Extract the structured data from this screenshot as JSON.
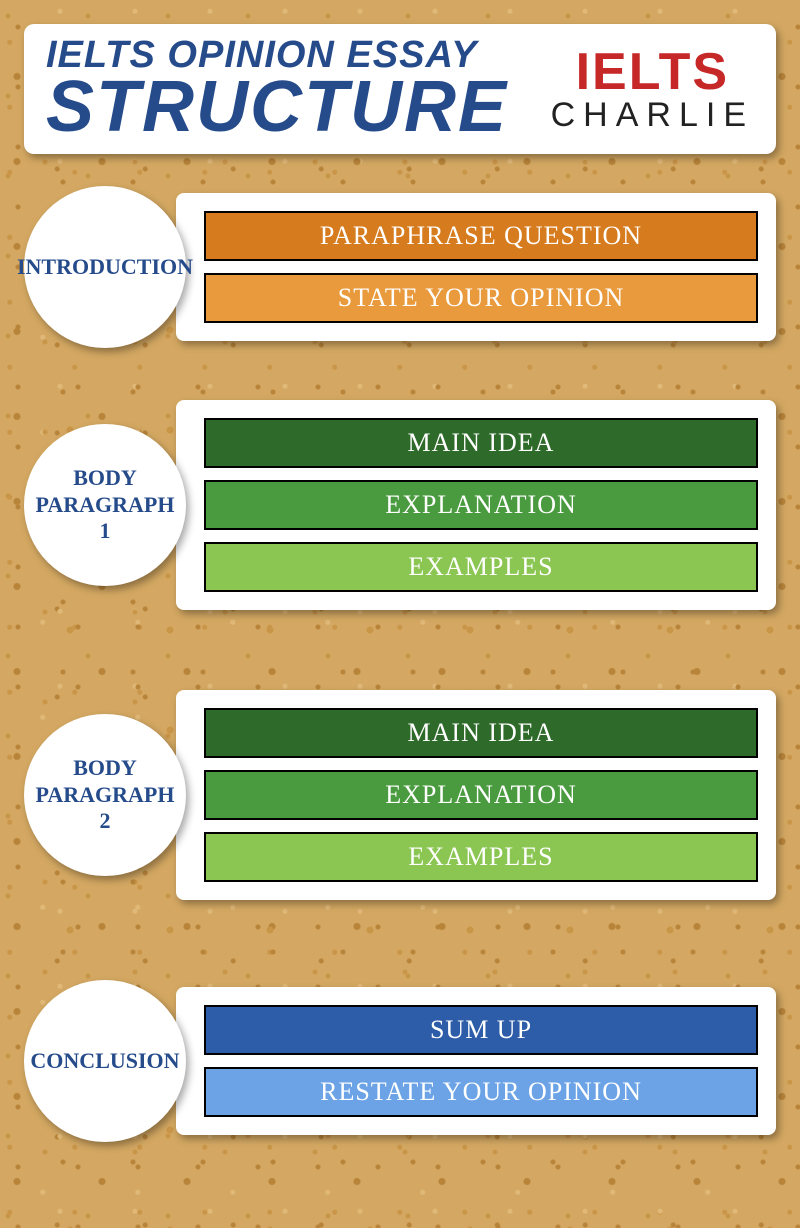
{
  "header": {
    "title_line1": "IELTS OPINION ESSAY",
    "title_line2": "STRUCTURE",
    "logo_top": "IELTS",
    "logo_bottom": "CHARLIE",
    "title_color": "#254b8a",
    "logo_top_color": "#c62828",
    "logo_bottom_color": "#222222",
    "card_bg": "#ffffff"
  },
  "sections": {
    "intro": {
      "label": "INTRODUCTION",
      "label_color": "#254b8a",
      "circle_bg": "#ffffff",
      "bars": [
        {
          "text": "PARAPHRASE QUESTION",
          "bg": "#d67b1e"
        },
        {
          "text": "STATE YOUR OPINION",
          "bg": "#e89a3c"
        }
      ]
    },
    "body1": {
      "label": "BODY\nPARAGRAPH\n1",
      "label_color": "#254b8a",
      "circle_bg": "#ffffff",
      "bars": [
        {
          "text": "MAIN IDEA",
          "bg": "#2e6b2a"
        },
        {
          "text": "EXPLANATION",
          "bg": "#4a9a3f"
        },
        {
          "text": "EXAMPLES",
          "bg": "#8bc653"
        }
      ]
    },
    "body2": {
      "label": "BODY\nPARAGRAPH\n2",
      "label_color": "#254b8a",
      "circle_bg": "#ffffff",
      "bars": [
        {
          "text": "MAIN IDEA",
          "bg": "#2e6b2a"
        },
        {
          "text": "EXPLANATION",
          "bg": "#4a9a3f"
        },
        {
          "text": "EXAMPLES",
          "bg": "#8bc653"
        }
      ]
    },
    "conclusion": {
      "label": "CONCLUSION",
      "label_color": "#254b8a",
      "circle_bg": "#ffffff",
      "bars": [
        {
          "text": "SUM UP",
          "bg": "#2d5da8"
        },
        {
          "text": "RESTATE YOUR OPINION",
          "bg": "#6ba3e6"
        }
      ]
    }
  },
  "styling": {
    "background_color": "#d4a862",
    "card_bg": "#ffffff",
    "bar_border": "#000000",
    "bar_text_color": "#ffffff",
    "shadow": "rgba(0,0,0,0.35)",
    "bar_font": "Comic Sans MS",
    "bar_fontsize": 26,
    "circle_fontsize": 22,
    "title_fontsize_line1": 38,
    "title_fontsize_line2": 72
  }
}
